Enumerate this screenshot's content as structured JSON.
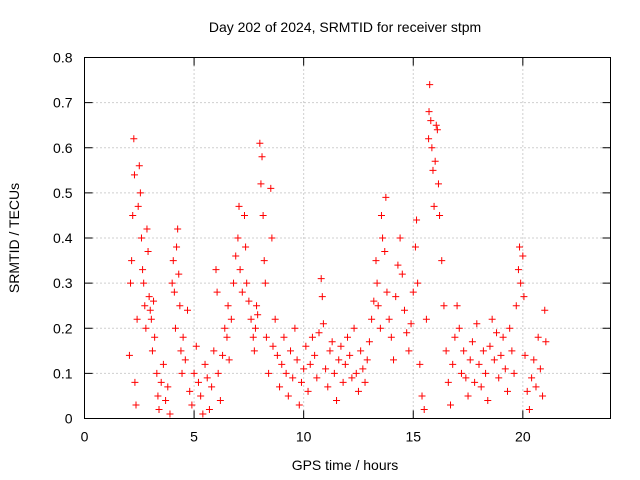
{
  "chart_data": {
    "type": "scatter",
    "title": "Day 202 of 2024, SRMTID for receiver stpm",
    "xlabel": "GPS time / hours",
    "ylabel": "SRMTID / TECUs",
    "xlim": [
      0,
      24
    ],
    "ylim": [
      0,
      0.8
    ],
    "x_ticks": [
      0,
      5,
      10,
      15,
      20
    ],
    "x_tick_labels": [
      "0",
      "5",
      "10",
      "15",
      "20"
    ],
    "y_ticks": [
      0,
      0.1,
      0.2,
      0.3,
      0.4,
      0.5,
      0.6,
      0.7,
      0.8
    ],
    "y_tick_labels": [
      "0",
      "0.1",
      "0.2",
      "0.3",
      "0.4",
      "0.5",
      "0.6",
      "0.7",
      "0.8"
    ],
    "grid": true,
    "marker": "+",
    "color": "#ff0000",
    "series": [
      {
        "name": "SRMTID",
        "points": [
          [
            2.05,
            0.14
          ],
          [
            2.1,
            0.3
          ],
          [
            2.15,
            0.35
          ],
          [
            2.2,
            0.45
          ],
          [
            2.25,
            0.62
          ],
          [
            2.28,
            0.54
          ],
          [
            2.3,
            0.08
          ],
          [
            2.35,
            0.03
          ],
          [
            2.4,
            0.22
          ],
          [
            2.45,
            0.47
          ],
          [
            2.5,
            0.56
          ],
          [
            2.55,
            0.5
          ],
          [
            2.6,
            0.4
          ],
          [
            2.65,
            0.33
          ],
          [
            2.7,
            0.3
          ],
          [
            2.75,
            0.25
          ],
          [
            2.8,
            0.2
          ],
          [
            2.85,
            0.42
          ],
          [
            2.9,
            0.37
          ],
          [
            2.95,
            0.27
          ],
          [
            3.0,
            0.24
          ],
          [
            3.05,
            0.22
          ],
          [
            3.1,
            0.15
          ],
          [
            3.15,
            0.26
          ],
          [
            3.2,
            0.18
          ],
          [
            3.3,
            0.1
          ],
          [
            3.35,
            0.05
          ],
          [
            3.4,
            0.02
          ],
          [
            3.5,
            0.08
          ],
          [
            3.6,
            0.12
          ],
          [
            3.7,
            0.04
          ],
          [
            3.8,
            0.07
          ],
          [
            3.9,
            0.01
          ],
          [
            4.0,
            0.3
          ],
          [
            4.05,
            0.35
          ],
          [
            4.1,
            0.28
          ],
          [
            4.15,
            0.2
          ],
          [
            4.2,
            0.38
          ],
          [
            4.25,
            0.42
          ],
          [
            4.3,
            0.32
          ],
          [
            4.35,
            0.25
          ],
          [
            4.4,
            0.15
          ],
          [
            4.45,
            0.1
          ],
          [
            4.5,
            0.18
          ],
          [
            4.6,
            0.13
          ],
          [
            4.7,
            0.24
          ],
          [
            4.8,
            0.06
          ],
          [
            4.9,
            0.03
          ],
          [
            5.0,
            0.1
          ],
          [
            5.1,
            0.16
          ],
          [
            5.2,
            0.08
          ],
          [
            5.3,
            0.05
          ],
          [
            5.4,
            0.01
          ],
          [
            5.5,
            0.12
          ],
          [
            5.6,
            0.09
          ],
          [
            5.7,
            0.02
          ],
          [
            5.8,
            0.07
          ],
          [
            5.9,
            0.15
          ],
          [
            6.0,
            0.33
          ],
          [
            6.05,
            0.28
          ],
          [
            6.1,
            0.1
          ],
          [
            6.2,
            0.04
          ],
          [
            6.3,
            0.14
          ],
          [
            6.4,
            0.2
          ],
          [
            6.5,
            0.18
          ],
          [
            6.55,
            0.25
          ],
          [
            6.6,
            0.13
          ],
          [
            6.7,
            0.22
          ],
          [
            6.8,
            0.3
          ],
          [
            6.9,
            0.36
          ],
          [
            7.0,
            0.4
          ],
          [
            7.05,
            0.47
          ],
          [
            7.1,
            0.33
          ],
          [
            7.2,
            0.28
          ],
          [
            7.3,
            0.45
          ],
          [
            7.35,
            0.38
          ],
          [
            7.4,
            0.3
          ],
          [
            7.5,
            0.26
          ],
          [
            7.6,
            0.22
          ],
          [
            7.7,
            0.18
          ],
          [
            7.75,
            0.15
          ],
          [
            7.8,
            0.2
          ],
          [
            7.85,
            0.25
          ],
          [
            7.9,
            0.23
          ],
          [
            8.0,
            0.61
          ],
          [
            8.05,
            0.52
          ],
          [
            8.1,
            0.58
          ],
          [
            8.15,
            0.45
          ],
          [
            8.2,
            0.35
          ],
          [
            8.25,
            0.3
          ],
          [
            8.3,
            0.18
          ],
          [
            8.4,
            0.1
          ],
          [
            8.5,
            0.51
          ],
          [
            8.55,
            0.4
          ],
          [
            8.6,
            0.16
          ],
          [
            8.7,
            0.22
          ],
          [
            8.8,
            0.14
          ],
          [
            8.9,
            0.07
          ],
          [
            9.0,
            0.12
          ],
          [
            9.1,
            0.18
          ],
          [
            9.2,
            0.1
          ],
          [
            9.3,
            0.05
          ],
          [
            9.4,
            0.15
          ],
          [
            9.5,
            0.09
          ],
          [
            9.6,
            0.2
          ],
          [
            9.7,
            0.13
          ],
          [
            9.8,
            0.03
          ],
          [
            9.9,
            0.08
          ],
          [
            10.0,
            0.11
          ],
          [
            10.1,
            0.16
          ],
          [
            10.2,
            0.06
          ],
          [
            10.3,
            0.12
          ],
          [
            10.4,
            0.18
          ],
          [
            10.5,
            0.14
          ],
          [
            10.6,
            0.09
          ],
          [
            10.7,
            0.19
          ],
          [
            10.8,
            0.31
          ],
          [
            10.85,
            0.27
          ],
          [
            10.9,
            0.21
          ],
          [
            11.0,
            0.11
          ],
          [
            11.1,
            0.07
          ],
          [
            11.2,
            0.15
          ],
          [
            11.3,
            0.17
          ],
          [
            11.4,
            0.1
          ],
          [
            11.5,
            0.04
          ],
          [
            11.6,
            0.13
          ],
          [
            11.7,
            0.16
          ],
          [
            11.8,
            0.08
          ],
          [
            11.9,
            0.12
          ],
          [
            12.0,
            0.18
          ],
          [
            12.1,
            0.14
          ],
          [
            12.2,
            0.09
          ],
          [
            12.3,
            0.2
          ],
          [
            12.4,
            0.1
          ],
          [
            12.5,
            0.06
          ],
          [
            12.6,
            0.15
          ],
          [
            12.7,
            0.11
          ],
          [
            12.8,
            0.08
          ],
          [
            12.9,
            0.13
          ],
          [
            13.0,
            0.17
          ],
          [
            13.1,
            0.22
          ],
          [
            13.2,
            0.26
          ],
          [
            13.3,
            0.35
          ],
          [
            13.35,
            0.3
          ],
          [
            13.4,
            0.25
          ],
          [
            13.5,
            0.2
          ],
          [
            13.55,
            0.45
          ],
          [
            13.6,
            0.4
          ],
          [
            13.7,
            0.37
          ],
          [
            13.75,
            0.49
          ],
          [
            13.8,
            0.28
          ],
          [
            13.9,
            0.22
          ],
          [
            14.0,
            0.18
          ],
          [
            14.1,
            0.13
          ],
          [
            14.2,
            0.27
          ],
          [
            14.3,
            0.34
          ],
          [
            14.4,
            0.4
          ],
          [
            14.5,
            0.32
          ],
          [
            14.6,
            0.24
          ],
          [
            14.7,
            0.19
          ],
          [
            14.8,
            0.15
          ],
          [
            14.9,
            0.21
          ],
          [
            15.0,
            0.28
          ],
          [
            15.1,
            0.38
          ],
          [
            15.15,
            0.44
          ],
          [
            15.2,
            0.3
          ],
          [
            15.3,
            0.12
          ],
          [
            15.4,
            0.05
          ],
          [
            15.5,
            0.02
          ],
          [
            15.6,
            0.22
          ],
          [
            15.7,
            0.62
          ],
          [
            15.72,
            0.68
          ],
          [
            15.75,
            0.74
          ],
          [
            15.8,
            0.66
          ],
          [
            15.85,
            0.6
          ],
          [
            15.9,
            0.55
          ],
          [
            15.95,
            0.47
          ],
          [
            16.0,
            0.57
          ],
          [
            16.05,
            0.65
          ],
          [
            16.1,
            0.64
          ],
          [
            16.15,
            0.52
          ],
          [
            16.2,
            0.45
          ],
          [
            16.3,
            0.35
          ],
          [
            16.4,
            0.25
          ],
          [
            16.5,
            0.15
          ],
          [
            16.6,
            0.08
          ],
          [
            16.7,
            0.03
          ],
          [
            16.8,
            0.12
          ],
          [
            16.9,
            0.18
          ],
          [
            17.0,
            0.25
          ],
          [
            17.1,
            0.2
          ],
          [
            17.2,
            0.1
          ],
          [
            17.3,
            0.15
          ],
          [
            17.4,
            0.09
          ],
          [
            17.5,
            0.05
          ],
          [
            17.6,
            0.13
          ],
          [
            17.7,
            0.17
          ],
          [
            17.8,
            0.08
          ],
          [
            17.9,
            0.21
          ],
          [
            18.0,
            0.12
          ],
          [
            18.1,
            0.07
          ],
          [
            18.2,
            0.15
          ],
          [
            18.3,
            0.1
          ],
          [
            18.4,
            0.04
          ],
          [
            18.5,
            0.16
          ],
          [
            18.6,
            0.22
          ],
          [
            18.7,
            0.13
          ],
          [
            18.8,
            0.19
          ],
          [
            18.9,
            0.09
          ],
          [
            19.0,
            0.14
          ],
          [
            19.1,
            0.18
          ],
          [
            19.2,
            0.11
          ],
          [
            19.3,
            0.06
          ],
          [
            19.4,
            0.2
          ],
          [
            19.5,
            0.15
          ],
          [
            19.6,
            0.1
          ],
          [
            19.7,
            0.25
          ],
          [
            19.8,
            0.33
          ],
          [
            19.85,
            0.38
          ],
          [
            19.9,
            0.3
          ],
          [
            20.0,
            0.36
          ],
          [
            20.05,
            0.27
          ],
          [
            20.1,
            0.14
          ],
          [
            20.2,
            0.06
          ],
          [
            20.3,
            0.02
          ],
          [
            20.4,
            0.09
          ],
          [
            20.5,
            0.13
          ],
          [
            20.6,
            0.07
          ],
          [
            20.7,
            0.18
          ],
          [
            20.8,
            0.11
          ],
          [
            20.9,
            0.05
          ],
          [
            21.0,
            0.24
          ],
          [
            21.05,
            0.17
          ]
        ]
      }
    ]
  }
}
